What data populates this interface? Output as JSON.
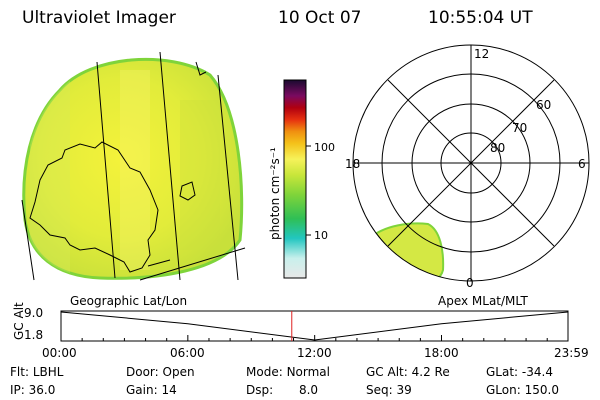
{
  "header": {
    "instrument": "Ultraviolet Imager",
    "date": "10 Oct 07",
    "time": "10:55:04 UT"
  },
  "geo_panel": {
    "label": "Geographic Lat/Lon"
  },
  "colorbar": {
    "unit_label": "photon cm⁻²s⁻¹",
    "tick_100": "100",
    "tick_10": "10",
    "scale": "log",
    "colors": [
      "#d8d8d8",
      "#9ee8e0",
      "#22c6c0",
      "#2fbf55",
      "#7fd43a",
      "#c8e63a",
      "#f2f02a",
      "#f4c21a",
      "#f09010",
      "#e63010",
      "#b00010",
      "#7a0a60",
      "#1a0a30"
    ]
  },
  "polar_panel": {
    "label": "Apex MLat/MLT",
    "mlt_labels": {
      "top": "12",
      "left": "18",
      "right": "6",
      "bottom": "0"
    },
    "lat_labels": [
      "60",
      "70",
      "80"
    ]
  },
  "altitude_plot": {
    "ylabel": "GC Alt",
    "y_ticks": [
      "9.0",
      "1.8"
    ],
    "x_ticks": [
      "00:00",
      "06:00",
      "12:00",
      "18:00",
      "23:59"
    ]
  },
  "chart_data": {
    "type": "line",
    "title": "",
    "xlabel": "",
    "ylabel": "GC Alt",
    "x": [
      "00:00",
      "06:00",
      "12:00",
      "18:00",
      "23:59"
    ],
    "series": [
      {
        "values": [
          9.0,
          6.0,
          1.8,
          6.0,
          9.0
        ]
      }
    ],
    "ylim": [
      1.8,
      9.0
    ],
    "marker_time": "10:55"
  },
  "status": {
    "flt_label": "Flt:",
    "flt_value": "LBHL",
    "ip_label": "IP:",
    "ip_value": "36.0",
    "door_label": "Door:",
    "door_value": "Open",
    "gain_label": "Gain:",
    "gain_value": "14",
    "mode_label": "Mode:",
    "mode_value": "Normal",
    "dsp_label": "Dsp:",
    "dsp_value": "8.0",
    "gcalt_label": "GC Alt:",
    "gcalt_value": "4.2 Re",
    "seq_label": "Seq:",
    "seq_value": "39",
    "glat_label": "GLat:",
    "glat_value": "-34.4",
    "glon_label": "GLon:",
    "glon_value": "150.0"
  }
}
